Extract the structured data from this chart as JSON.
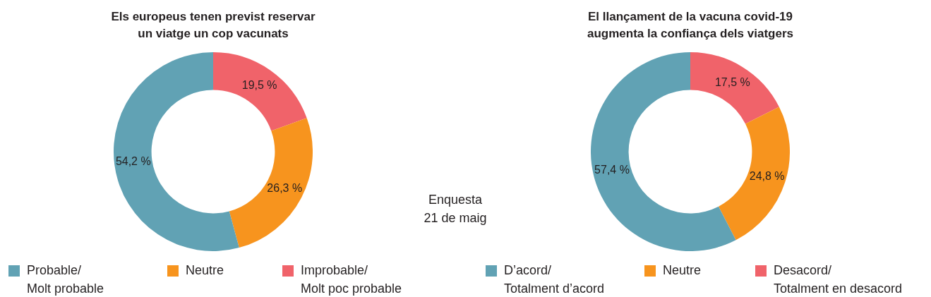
{
  "chart_data": [
    {
      "type": "donut",
      "title": "Els europeus tenen previst reservar\nun viatge un cop vacunats",
      "categories": [
        "Probable/\nMolt probable",
        "Neutre",
        "Improbable/\nMolt poc probable"
      ],
      "values": [
        54.2,
        26.3,
        19.5
      ],
      "colors": [
        "#61a2b4",
        "#f7941e",
        "#f0636a"
      ],
      "value_labels": [
        "54,2 %",
        "26,3 %",
        "19,5 %"
      ],
      "legend": "bottom",
      "annotations": [
        "Enquesta\n21 de maig"
      ]
    },
    {
      "type": "donut",
      "title": "El llançament de la vacuna covid-19\naugmenta la confiança dels viatgers",
      "categories": [
        "D’acord/\nTotalment d’acord",
        "Neutre",
        "Desacord/\nTotalment en desacord"
      ],
      "values": [
        57.4,
        24.8,
        17.5
      ],
      "colors": [
        "#61a2b4",
        "#f7941e",
        "#f0636a"
      ],
      "value_labels": [
        "57,4 %",
        "24,8 %",
        "17,5 %"
      ],
      "legend": "bottom"
    }
  ]
}
